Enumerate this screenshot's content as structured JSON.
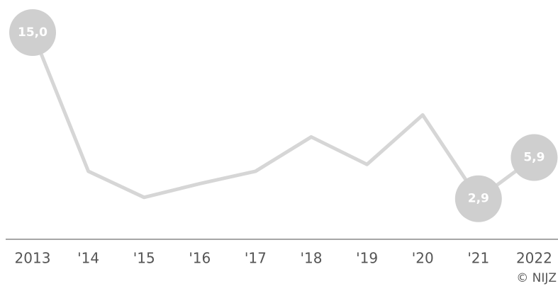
{
  "chart_data": {
    "type": "line",
    "categories": [
      "2013",
      "'14",
      "'15",
      "'16",
      "'17",
      "'18",
      "'19",
      "'20",
      "'21",
      "2022"
    ],
    "values": [
      15.0,
      4.9,
      3.0,
      4.0,
      4.9,
      7.4,
      5.4,
      9.0,
      2.9,
      5.9
    ],
    "value_labels": [
      "15,0",
      null,
      null,
      null,
      null,
      null,
      null,
      null,
      "2,9",
      "5,9"
    ],
    "color": "#d6d6d6",
    "ylim": [
      0,
      15
    ],
    "source": "© NIJZ"
  }
}
